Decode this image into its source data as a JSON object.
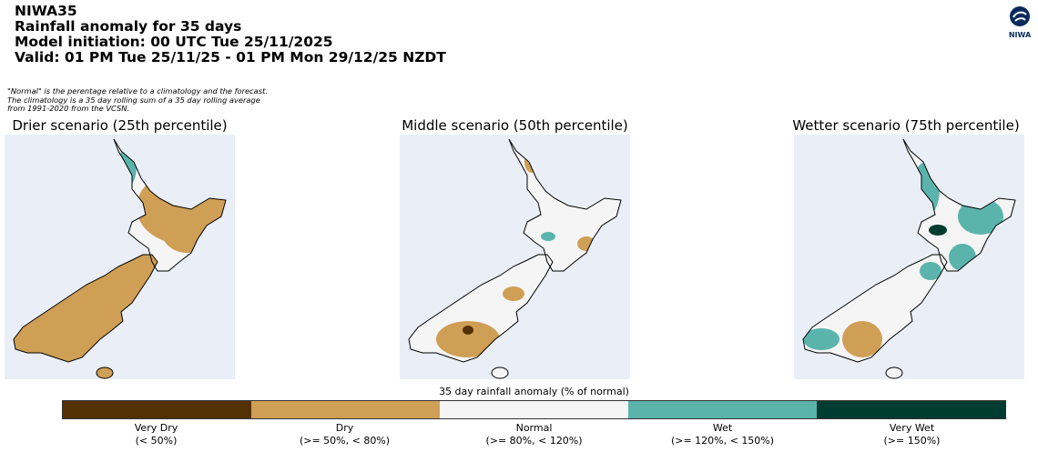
{
  "header": {
    "lines": [
      "NIWA35",
      "Rainfall anomaly for 35 days",
      "Model initiation: 00 UTC Tue 25/11/2025",
      "Valid: 01 PM Tue 25/11/25 - 01 PM Mon 29/12/25 NZDT"
    ]
  },
  "note": "\"Normal\" is the perentage relative to a climatology and the forecast. The climatology is a 35 day rolling sum of a 35 day rolling average from 1991-2020 from the VCSN.",
  "logo": {
    "text": "NIWA",
    "icon": "niwa-logo-icon"
  },
  "panels": [
    {
      "title": "Drier scenario (25th percentile)",
      "dominant": "Dry"
    },
    {
      "title": "Middle scenario (50th percentile)",
      "dominant": "Normal"
    },
    {
      "title": "Wetter scenario (75th percentile)",
      "dominant": "Wet"
    }
  ],
  "colorbar": {
    "title": "35 day rainfall anomaly (% of normal)",
    "categories": [
      {
        "name": "Very Dry",
        "range": "(< 50%)",
        "color": "#543005"
      },
      {
        "name": "Dry",
        "range": "(>= 50%, < 80%)",
        "color": "#cf9f55"
      },
      {
        "name": "Normal",
        "range": "(>= 80%, < 120%)",
        "color": "#f5f5f5"
      },
      {
        "name": "Wet",
        "range": "(>= 120%, < 150%)",
        "color": "#5ab4ac"
      },
      {
        "name": "Very Wet",
        "range": "(>= 150%)",
        "color": "#003c30"
      }
    ]
  },
  "map_background": "#e9eef7"
}
